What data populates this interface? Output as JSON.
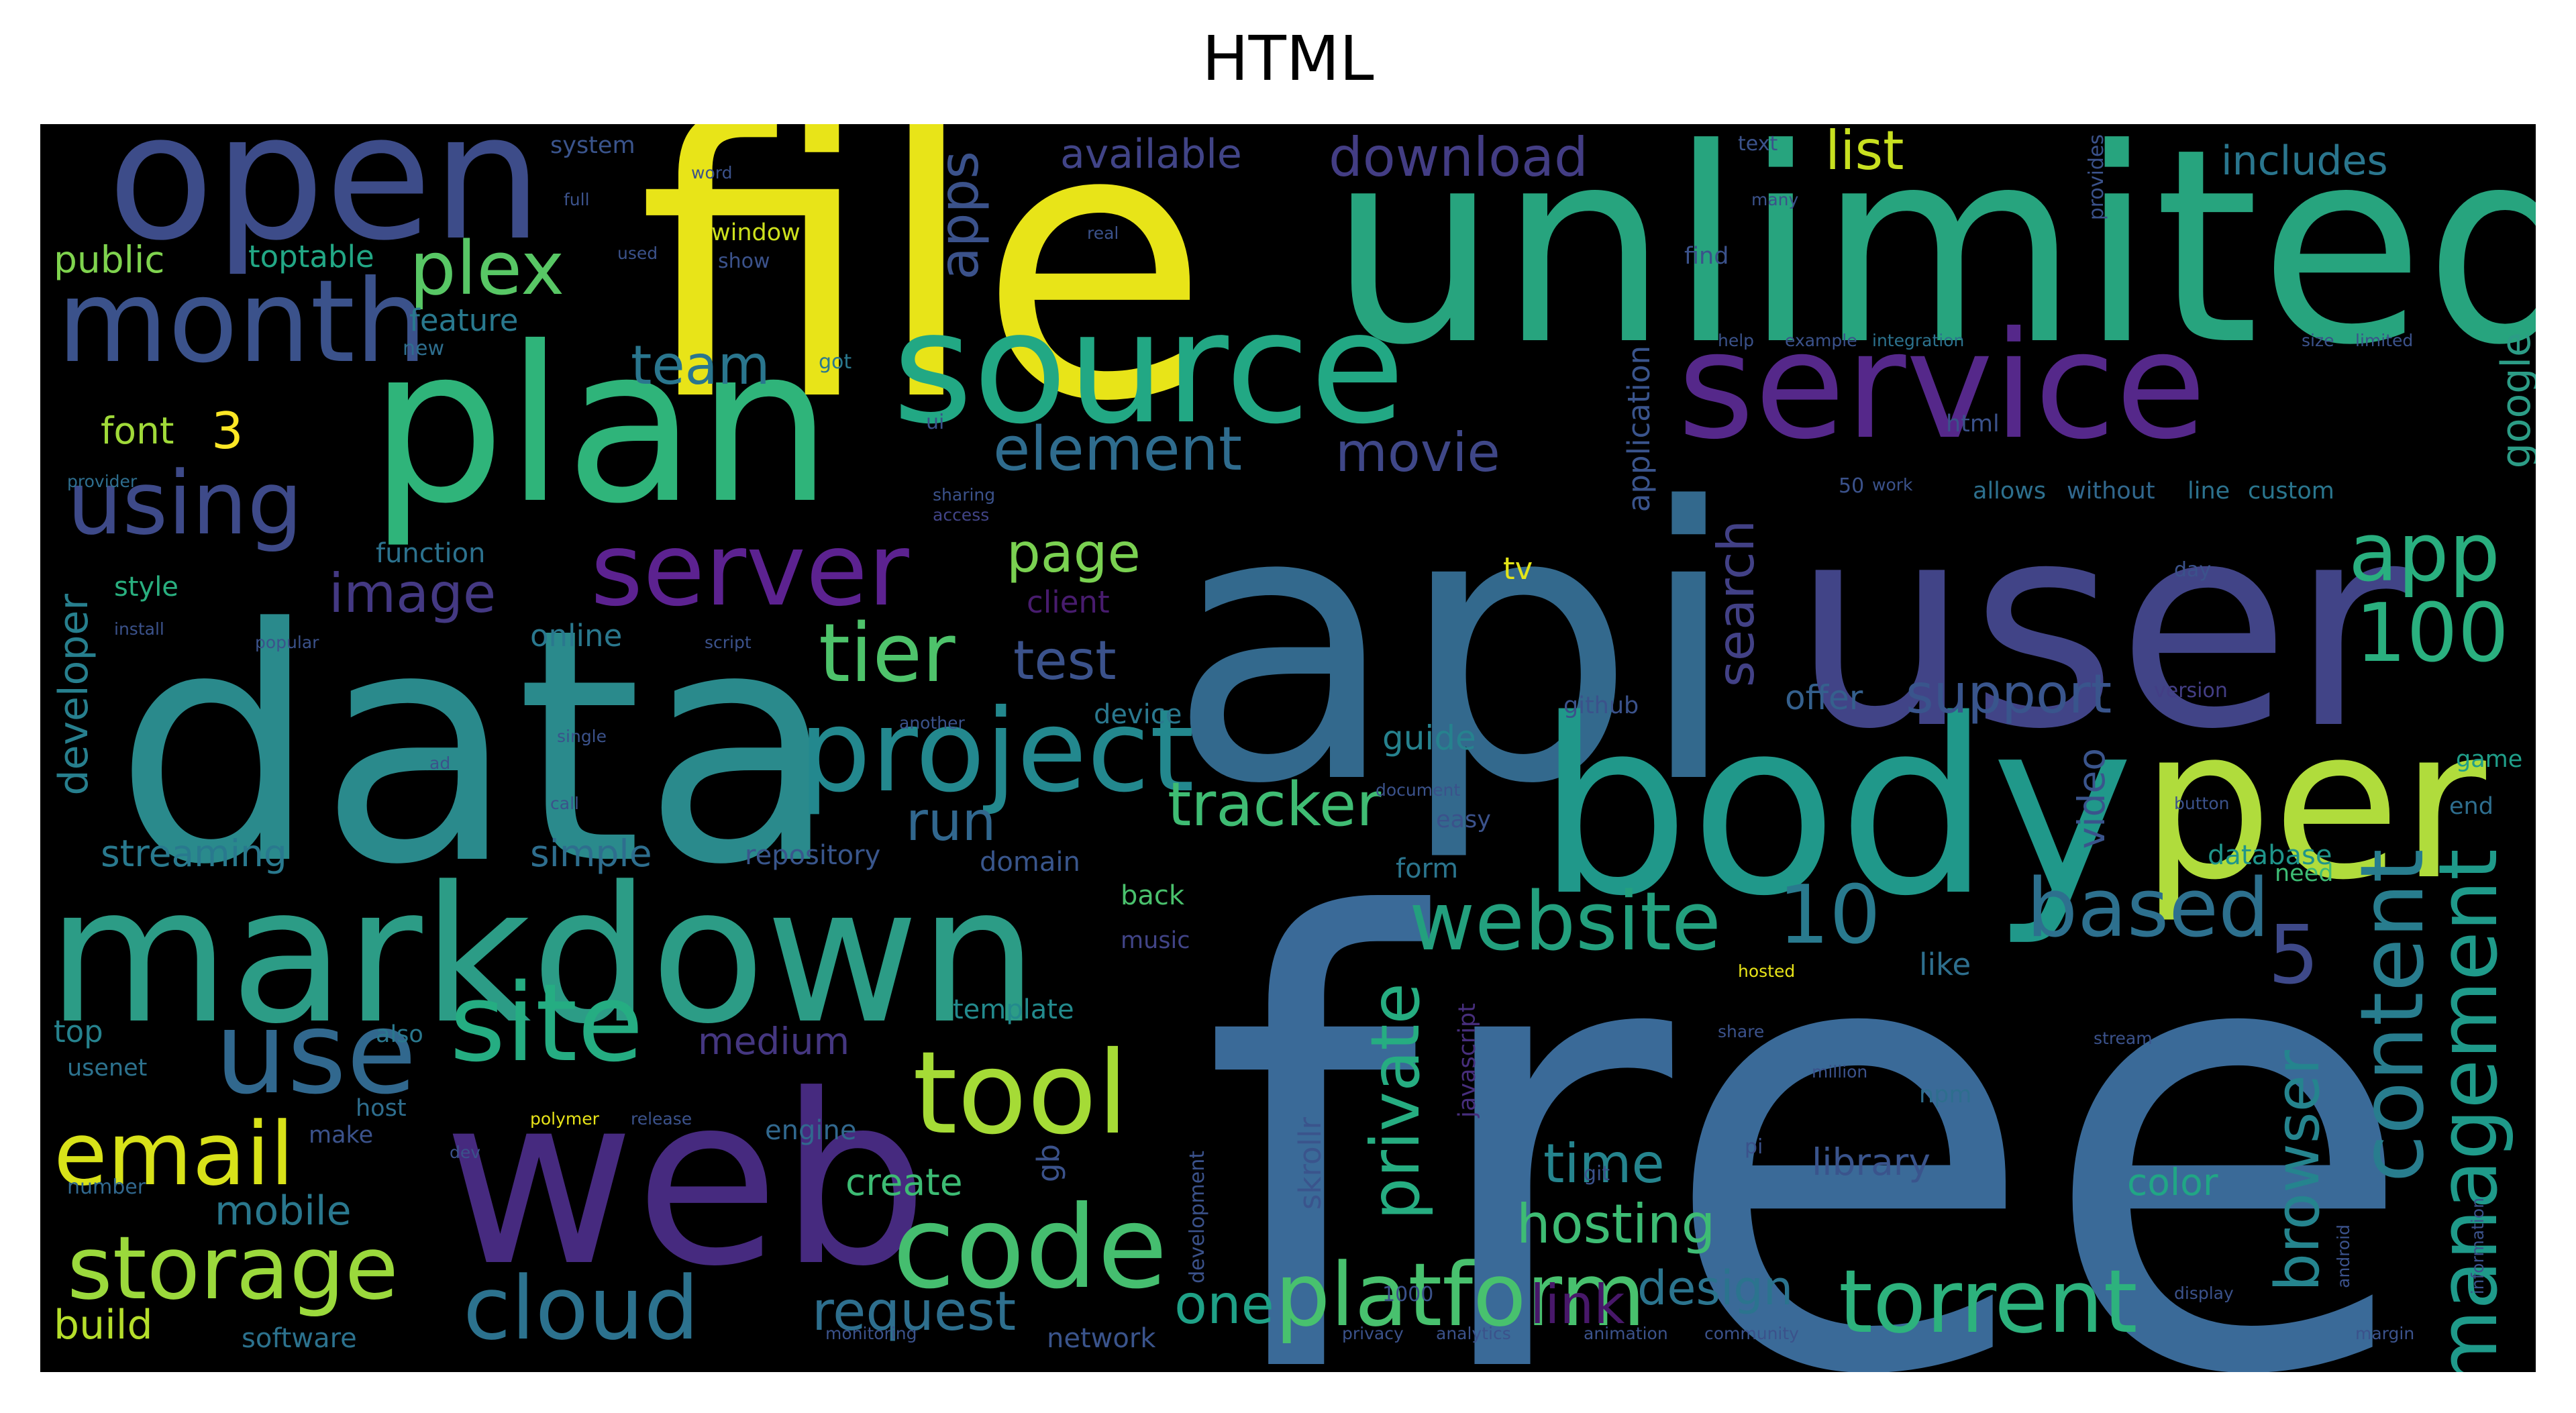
{
  "title": "HTML",
  "words": [
    {
      "text": "free",
      "color": "#3a6a98"
    },
    {
      "text": "file",
      "color": "#e8e418"
    },
    {
      "text": "unlimited",
      "color": "#27a47e"
    },
    {
      "text": "api",
      "color": "#33698d"
    },
    {
      "text": "user",
      "color": "#414487"
    },
    {
      "text": "data",
      "color": "#2a8a8c"
    },
    {
      "text": "markdown",
      "color": "#2c9c86"
    },
    {
      "text": "web",
      "color": "#462a7f"
    },
    {
      "text": "body",
      "color": "#20988a"
    },
    {
      "text": "plan",
      "color": "#2fb47a"
    },
    {
      "text": "open",
      "color": "#3d4c89"
    },
    {
      "text": "source",
      "color": "#22a884"
    },
    {
      "text": "service",
      "color": "#55288a"
    },
    {
      "text": "per",
      "color": "#b0dc3c"
    },
    {
      "text": "month",
      "color": "#3b528b"
    },
    {
      "text": "server",
      "color": "#5c2290"
    },
    {
      "text": "project",
      "color": "#23888e"
    },
    {
      "text": "tool",
      "color": "#a5db36"
    },
    {
      "text": "code",
      "color": "#45be6f"
    },
    {
      "text": "site",
      "color": "#25ad82"
    },
    {
      "text": "use",
      "color": "#31688e"
    },
    {
      "text": "email",
      "color": "#d8e219"
    },
    {
      "text": "storage",
      "color": "#9bd93c"
    },
    {
      "text": "cloud",
      "color": "#2c728e"
    },
    {
      "text": "platform",
      "color": "#48c16e"
    },
    {
      "text": "torrent",
      "color": "#2db27d"
    },
    {
      "text": "website",
      "color": "#23a07e"
    },
    {
      "text": "based",
      "color": "#2d708e"
    },
    {
      "text": "content",
      "color": "#287d8e"
    },
    {
      "text": "management",
      "color": "#1f9a8a"
    },
    {
      "text": "browser",
      "color": "#25848e"
    },
    {
      "text": "app",
      "color": "#29af7f"
    },
    {
      "text": "100",
      "color": "#2ab07f"
    },
    {
      "text": "tier",
      "color": "#4ec36b"
    },
    {
      "text": "plex",
      "color": "#58c765"
    },
    {
      "text": "using",
      "color": "#3e4a89"
    },
    {
      "text": "element",
      "color": "#2f6c8e"
    },
    {
      "text": "movie",
      "color": "#3f4788"
    },
    {
      "text": "download",
      "color": "#433d84"
    },
    {
      "text": "team",
      "color": "#2a768e"
    },
    {
      "text": "apps",
      "color": "#3b528b"
    },
    {
      "text": "image",
      "color": "#443983"
    },
    {
      "text": "page",
      "color": "#7ad151"
    },
    {
      "text": "test",
      "color": "#3b528b"
    },
    {
      "text": "run",
      "color": "#31678e"
    },
    {
      "text": "tracker",
      "color": "#3fbc73"
    },
    {
      "text": "support",
      "color": "#39558c"
    },
    {
      "text": "10",
      "color": "#297a8e"
    },
    {
      "text": "5",
      "color": "#3e4989"
    },
    {
      "text": "private",
      "color": "#26ad81"
    },
    {
      "text": "time",
      "color": "#25848e"
    },
    {
      "text": "hosting",
      "color": "#3ebc74"
    },
    {
      "text": "link",
      "color": "#48186a"
    },
    {
      "text": "request",
      "color": "#2e6f8e"
    },
    {
      "text": "one",
      "color": "#1fa187"
    },
    {
      "text": "design",
      "color": "#2b748e"
    },
    {
      "text": "list",
      "color": "#c8e020"
    },
    {
      "text": "includes",
      "color": "#2a768e"
    },
    {
      "text": "available",
      "color": "#414487"
    },
    {
      "text": "public",
      "color": "#7fd34e"
    },
    {
      "text": "toptable",
      "color": "#22a785"
    },
    {
      "text": "font",
      "color": "#a0da39"
    },
    {
      "text": "3",
      "color": "#fde725"
    },
    {
      "text": "developer",
      "color": "#277f8e"
    },
    {
      "text": "streaming",
      "color": "#29798e"
    },
    {
      "text": "simple",
      "color": "#2e6e8e"
    },
    {
      "text": "mobile",
      "color": "#2a788e"
    },
    {
      "text": "medium",
      "color": "#453781"
    },
    {
      "text": "build",
      "color": "#b5de2b"
    },
    {
      "text": "create",
      "color": "#3dbc74"
    },
    {
      "text": "library",
      "color": "#3a548c"
    },
    {
      "text": "color",
      "color": "#21a685"
    },
    {
      "text": "video",
      "color": "#3a548c"
    },
    {
      "text": "google",
      "color": "#2c9c86"
    },
    {
      "text": "search",
      "color": "#424186"
    },
    {
      "text": "application",
      "color": "#3a548c"
    },
    {
      "text": "guide",
      "color": "#26828e"
    },
    {
      "text": "offer",
      "color": "#35608d"
    },
    {
      "text": "online",
      "color": "#2a788e"
    },
    {
      "text": "top",
      "color": "#26828e"
    },
    {
      "text": "skrollr",
      "color": "#3a548c"
    },
    {
      "text": "database",
      "color": "#1f958b"
    },
    {
      "text": "like",
      "color": "#2e6f8e"
    },
    {
      "text": "client",
      "color": "#481c6e"
    },
    {
      "text": "repository",
      "color": "#39568c"
    },
    {
      "text": "function",
      "color": "#2c728e"
    },
    {
      "text": "system",
      "color": "#3a548c"
    },
    {
      "text": "feature",
      "color": "#29798e"
    },
    {
      "text": "window",
      "color": "#cde11d"
    },
    {
      "text": "style",
      "color": "#29af7f"
    },
    {
      "text": "device",
      "color": "#2a788e"
    },
    {
      "text": "domain",
      "color": "#39568c"
    },
    {
      "text": "network",
      "color": "#3a548c"
    },
    {
      "text": "software",
      "color": "#2c728e"
    },
    {
      "text": "engine",
      "color": "#31688e"
    },
    {
      "text": "template",
      "color": "#238a8d"
    },
    {
      "text": "music",
      "color": "#414487"
    },
    {
      "text": "form",
      "color": "#2b758e"
    },
    {
      "text": "back",
      "color": "#4ac16d"
    },
    {
      "text": "need",
      "color": "#3dbc74"
    },
    {
      "text": "game",
      "color": "#1f9e89"
    },
    {
      "text": "end",
      "color": "#2e6e8e"
    },
    {
      "text": "javascript",
      "color": "#472e7c"
    },
    {
      "text": "make",
      "color": "#3b528b"
    },
    {
      "text": "usenet",
      "color": "#2c728e"
    },
    {
      "text": "number",
      "color": "#31688e"
    },
    {
      "text": "host",
      "color": "#2e6e8e"
    },
    {
      "text": "also",
      "color": "#2a788e"
    },
    {
      "text": "easy",
      "color": "#3b528b"
    },
    {
      "text": "github",
      "color": "#3b528b"
    },
    {
      "text": "version",
      "color": "#433e85"
    },
    {
      "text": "html",
      "color": "#3b528b"
    },
    {
      "text": "allows",
      "color": "#2d708e"
    },
    {
      "text": "without",
      "color": "#31688e"
    },
    {
      "text": "line",
      "color": "#2c728e"
    },
    {
      "text": "custom",
      "color": "#2a768e"
    },
    {
      "text": "find",
      "color": "#3b528b"
    },
    {
      "text": "provides",
      "color": "#3b528b"
    },
    {
      "text": "development",
      "color": "#3b528b"
    },
    {
      "text": "1000",
      "color": "#3b528b"
    },
    {
      "text": "npm",
      "color": "#2e6e8e"
    },
    {
      "text": "gb",
      "color": "#3b528b"
    },
    {
      "text": "day",
      "color": "#3b528b"
    },
    {
      "text": "tv",
      "color": "#e3e418"
    },
    {
      "text": "ui",
      "color": "#3b528b"
    },
    {
      "text": "new",
      "color": "#2e6e8e"
    },
    {
      "text": "got",
      "color": "#2a788e"
    },
    {
      "text": "help",
      "color": "#3b528b"
    },
    {
      "text": "example",
      "color": "#3b528b"
    },
    {
      "text": "integration",
      "color": "#2c728e"
    },
    {
      "text": "size",
      "color": "#3b528b"
    },
    {
      "text": "limited",
      "color": "#3b528b"
    },
    {
      "text": "sharing",
      "color": "#3b528b"
    },
    {
      "text": "access",
      "color": "#414487"
    },
    {
      "text": "provider",
      "color": "#2e6e8e"
    },
    {
      "text": "word",
      "color": "#3b528b"
    },
    {
      "text": "text",
      "color": "#3b528b"
    },
    {
      "text": "real",
      "color": "#3b528b"
    },
    {
      "text": "show",
      "color": "#3b528b"
    },
    {
      "text": "script",
      "color": "#3b528b"
    },
    {
      "text": "popular",
      "color": "#3b528b"
    },
    {
      "text": "install",
      "color": "#3b528b"
    },
    {
      "text": "single",
      "color": "#3b528b"
    },
    {
      "text": "another",
      "color": "#3b528b"
    },
    {
      "text": "document",
      "color": "#3b528b"
    },
    {
      "text": "hosted",
      "color": "#e8e418"
    },
    {
      "text": "share",
      "color": "#3b528b"
    },
    {
      "text": "stream",
      "color": "#3b528b"
    },
    {
      "text": "million",
      "color": "#3b528b"
    },
    {
      "text": "polymer",
      "color": "#e8e418"
    },
    {
      "text": "release",
      "color": "#3b528b"
    },
    {
      "text": "dev",
      "color": "#3b528b"
    },
    {
      "text": "privacy",
      "color": "#3b528b"
    },
    {
      "text": "analytics",
      "color": "#3b528b"
    },
    {
      "text": "animation",
      "color": "#3b528b"
    },
    {
      "text": "community",
      "color": "#3b528b"
    },
    {
      "text": "display",
      "color": "#3b528b"
    },
    {
      "text": "margin",
      "color": "#3b528b"
    },
    {
      "text": "information",
      "color": "#3b528b"
    },
    {
      "text": "monitoring",
      "color": "#3b528b"
    },
    {
      "text": "android",
      "color": "#3b528b"
    },
    {
      "text": "button",
      "color": "#3b528b"
    },
    {
      "text": "work",
      "color": "#3b528b"
    },
    {
      "text": "50",
      "color": "#3b528b"
    },
    {
      "text": "pi",
      "color": "#3b528b"
    },
    {
      "text": "git",
      "color": "#3b528b"
    },
    {
      "text": "ad",
      "color": "#3b528b"
    },
    {
      "text": "call",
      "color": "#3b528b"
    },
    {
      "text": "full",
      "color": "#3b528b"
    },
    {
      "text": "used",
      "color": "#3b528b"
    },
    {
      "text": "many",
      "color": "#3b528b"
    }
  ]
}
